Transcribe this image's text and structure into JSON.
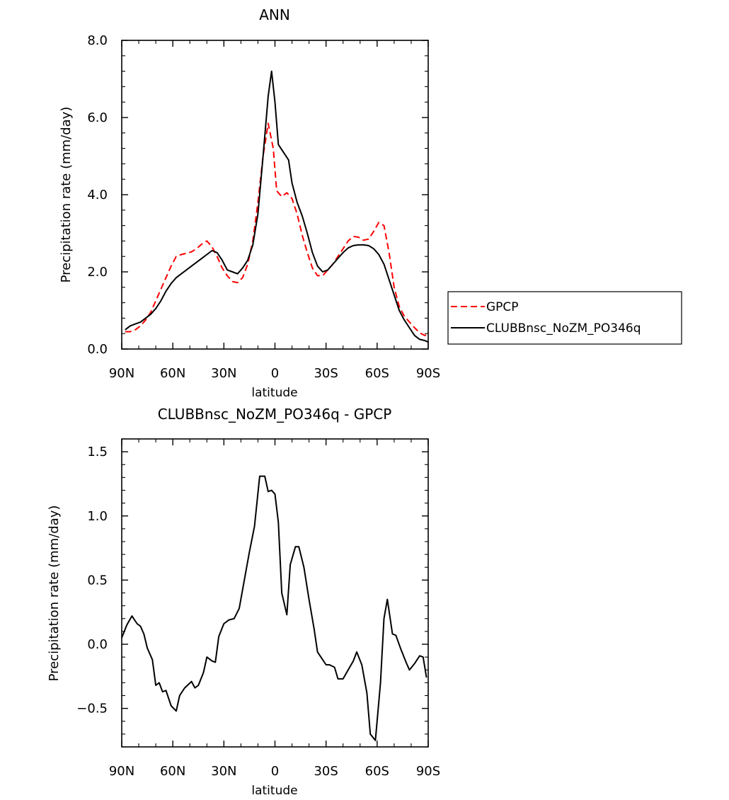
{
  "chart_data": [
    {
      "type": "line",
      "title": "ANN",
      "xlabel": "latitude",
      "ylabel": "Precipitation rate (mm/day)",
      "xlim": [
        90,
        -90
      ],
      "ylim": [
        0,
        8
      ],
      "x_ticks": [
        90,
        60,
        30,
        0,
        -30,
        -60,
        -90
      ],
      "x_tick_labels": [
        "90N",
        "60N",
        "30N",
        "0",
        "30S",
        "60S",
        "90S"
      ],
      "y_ticks": [
        0,
        2,
        4,
        6,
        8
      ],
      "y_tick_labels": [
        "0.0",
        "2.0",
        "4.0",
        "6.0",
        "8.0"
      ],
      "legend_position": "right",
      "series": [
        {
          "name": "GPCP",
          "color": "#ff0000",
          "dash": "dashed",
          "points": [
            [
              88,
              0.45
            ],
            [
              85,
              0.45
            ],
            [
              82,
              0.5
            ],
            [
              79,
              0.6
            ],
            [
              76,
              0.75
            ],
            [
              73,
              0.95
            ],
            [
              70,
              1.25
            ],
            [
              67,
              1.55
            ],
            [
              64,
              1.85
            ],
            [
              61,
              2.15
            ],
            [
              58,
              2.4
            ],
            [
              55,
              2.45
            ],
            [
              52,
              2.48
            ],
            [
              49,
              2.52
            ],
            [
              46,
              2.6
            ],
            [
              43,
              2.72
            ],
            [
              40,
              2.8
            ],
            [
              37,
              2.65
            ],
            [
              34,
              2.4
            ],
            [
              31,
              2.1
            ],
            [
              28,
              1.9
            ],
            [
              25,
              1.75
            ],
            [
              22,
              1.72
            ],
            [
              19,
              1.85
            ],
            [
              16,
              2.2
            ],
            [
              13,
              2.8
            ],
            [
              10,
              3.8
            ],
            [
              7,
              5.0
            ],
            [
              4,
              5.85
            ],
            [
              1,
              5.2
            ],
            [
              -1,
              4.1
            ],
            [
              -4,
              3.95
            ],
            [
              -7,
              4.05
            ],
            [
              -10,
              3.9
            ],
            [
              -13,
              3.5
            ],
            [
              -16,
              2.95
            ],
            [
              -19,
              2.5
            ],
            [
              -22,
              2.1
            ],
            [
              -25,
              1.9
            ],
            [
              -28,
              1.9
            ],
            [
              -31,
              2.05
            ],
            [
              -34,
              2.2
            ],
            [
              -37,
              2.4
            ],
            [
              -40,
              2.6
            ],
            [
              -43,
              2.8
            ],
            [
              -46,
              2.92
            ],
            [
              -49,
              2.9
            ],
            [
              -52,
              2.82
            ],
            [
              -55,
              2.85
            ],
            [
              -58,
              3.05
            ],
            [
              -61,
              3.28
            ],
            [
              -64,
              3.2
            ],
            [
              -67,
              2.5
            ],
            [
              -70,
              1.6
            ],
            [
              -73,
              1.1
            ],
            [
              -76,
              0.85
            ],
            [
              -79,
              0.7
            ],
            [
              -82,
              0.55
            ],
            [
              -85,
              0.42
            ],
            [
              -88,
              0.35
            ],
            [
              -90,
              0.38
            ]
          ]
        },
        {
          "name": "CLUBBnsc_NoZM_PO346q",
          "color": "#000000",
          "dash": "solid",
          "points": [
            [
              88,
              0.5
            ],
            [
              85,
              0.6
            ],
            [
              82,
              0.65
            ],
            [
              79,
              0.7
            ],
            [
              76,
              0.8
            ],
            [
              73,
              0.9
            ],
            [
              70,
              1.05
            ],
            [
              67,
              1.25
            ],
            [
              64,
              1.5
            ],
            [
              61,
              1.7
            ],
            [
              58,
              1.85
            ],
            [
              55,
              1.95
            ],
            [
              52,
              2.05
            ],
            [
              49,
              2.15
            ],
            [
              46,
              2.25
            ],
            [
              43,
              2.35
            ],
            [
              40,
              2.45
            ],
            [
              37,
              2.55
            ],
            [
              34,
              2.5
            ],
            [
              31,
              2.3
            ],
            [
              28,
              2.05
            ],
            [
              25,
              2.0
            ],
            [
              22,
              1.95
            ],
            [
              19,
              2.1
            ],
            [
              16,
              2.3
            ],
            [
              13,
              2.7
            ],
            [
              10,
              3.5
            ],
            [
              7,
              5.0
            ],
            [
              4,
              6.55
            ],
            [
              2,
              7.2
            ],
            [
              0,
              6.4
            ],
            [
              -2,
              5.3
            ],
            [
              -5,
              5.1
            ],
            [
              -8,
              4.9
            ],
            [
              -10,
              4.3
            ],
            [
              -13,
              3.8
            ],
            [
              -16,
              3.45
            ],
            [
              -19,
              3.0
            ],
            [
              -22,
              2.5
            ],
            [
              -25,
              2.15
            ],
            [
              -28,
              2.0
            ],
            [
              -31,
              2.05
            ],
            [
              -34,
              2.2
            ],
            [
              -37,
              2.35
            ],
            [
              -40,
              2.5
            ],
            [
              -43,
              2.62
            ],
            [
              -46,
              2.68
            ],
            [
              -49,
              2.7
            ],
            [
              -52,
              2.7
            ],
            [
              -55,
              2.68
            ],
            [
              -58,
              2.6
            ],
            [
              -61,
              2.45
            ],
            [
              -64,
              2.2
            ],
            [
              -67,
              1.8
            ],
            [
              -70,
              1.4
            ],
            [
              -73,
              1.0
            ],
            [
              -76,
              0.75
            ],
            [
              -79,
              0.55
            ],
            [
              -82,
              0.35
            ],
            [
              -85,
              0.25
            ],
            [
              -88,
              0.22
            ],
            [
              -90,
              0.18
            ]
          ]
        }
      ]
    },
    {
      "type": "line",
      "title": "CLUBBnsc_NoZM_PO346q - GPCP",
      "xlabel": "latitude",
      "ylabel": "Precipitation rate (mm/day)",
      "xlim": [
        90,
        -90
      ],
      "ylim": [
        -0.8,
        1.6
      ],
      "x_ticks": [
        90,
        60,
        30,
        0,
        -30,
        -60,
        -90
      ],
      "x_tick_labels": [
        "90N",
        "60N",
        "30N",
        "0",
        "30S",
        "60S",
        "90S"
      ],
      "y_ticks": [
        -0.5,
        0,
        0.5,
        1.0,
        1.5
      ],
      "y_tick_labels": [
        "−0.5",
        "0.0",
        "0.5",
        "1.0",
        "1.5"
      ],
      "series": [
        {
          "color": "#000000",
          "dash": "solid",
          "points": [
            [
              90,
              0.05
            ],
            [
              87,
              0.15
            ],
            [
              84,
              0.22
            ],
            [
              81,
              0.16
            ],
            [
              79,
              0.14
            ],
            [
              77,
              0.08
            ],
            [
              75,
              -0.03
            ],
            [
              72,
              -0.12
            ],
            [
              70,
              -0.32
            ],
            [
              68,
              -0.3
            ],
            [
              66,
              -0.37
            ],
            [
              64,
              -0.36
            ],
            [
              61,
              -0.48
            ],
            [
              58,
              -0.52
            ],
            [
              56,
              -0.4
            ],
            [
              53,
              -0.34
            ],
            [
              49,
              -0.29
            ],
            [
              47,
              -0.34
            ],
            [
              45,
              -0.32
            ],
            [
              42,
              -0.22
            ],
            [
              40,
              -0.1
            ],
            [
              37,
              -0.13
            ],
            [
              35,
              -0.14
            ],
            [
              33,
              0.06
            ],
            [
              30,
              0.16
            ],
            [
              27,
              0.19
            ],
            [
              24,
              0.2
            ],
            [
              21,
              0.28
            ],
            [
              18,
              0.5
            ],
            [
              15,
              0.72
            ],
            [
              12,
              0.92
            ],
            [
              9,
              1.31
            ],
            [
              6,
              1.31
            ],
            [
              4,
              1.19
            ],
            [
              2,
              1.2
            ],
            [
              0,
              1.17
            ],
            [
              -2,
              0.95
            ],
            [
              -4,
              0.4
            ],
            [
              -7,
              0.23
            ],
            [
              -9,
              0.62
            ],
            [
              -12,
              0.76
            ],
            [
              -14,
              0.76
            ],
            [
              -17,
              0.6
            ],
            [
              -20,
              0.35
            ],
            [
              -23,
              0.12
            ],
            [
              -25,
              -0.06
            ],
            [
              -28,
              -0.12
            ],
            [
              -30,
              -0.16
            ],
            [
              -32,
              -0.16
            ],
            [
              -35,
              -0.18
            ],
            [
              -37,
              -0.27
            ],
            [
              -40,
              -0.27
            ],
            [
              -43,
              -0.2
            ],
            [
              -46,
              -0.13
            ],
            [
              -48,
              -0.06
            ],
            [
              -51,
              -0.16
            ],
            [
              -54,
              -0.38
            ],
            [
              -56,
              -0.7
            ],
            [
              -59,
              -0.75
            ],
            [
              -62,
              -0.3
            ],
            [
              -64,
              0.2
            ],
            [
              -66,
              0.35
            ],
            [
              -69,
              0.08
            ],
            [
              -71,
              0.07
            ],
            [
              -74,
              -0.04
            ],
            [
              -77,
              -0.14
            ],
            [
              -79,
              -0.2
            ],
            [
              -82,
              -0.15
            ],
            [
              -85,
              -0.09
            ],
            [
              -87,
              -0.1
            ],
            [
              -89,
              -0.26
            ]
          ]
        }
      ]
    }
  ]
}
